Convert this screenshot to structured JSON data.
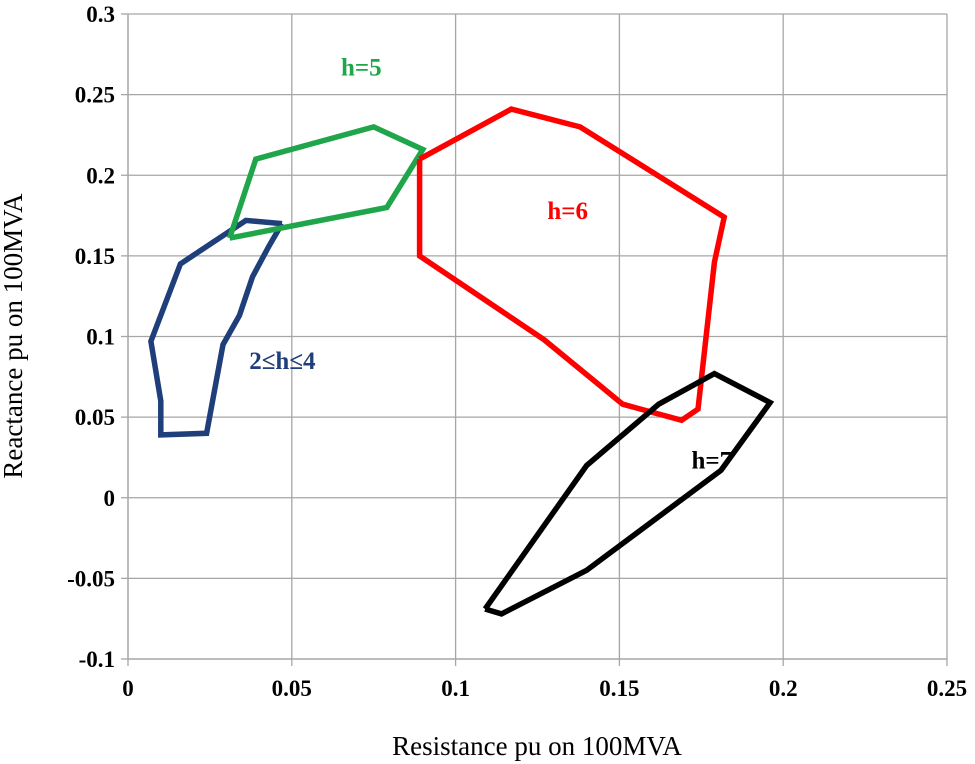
{
  "chart_data": {
    "type": "scatter",
    "title": "",
    "xlabel": "Resistance pu on 100MVA",
    "ylabel": "Reactance pu on 100MVA",
    "xlim": [
      0,
      0.25
    ],
    "ylim": [
      -0.1,
      0.3
    ],
    "xticks": [
      "0",
      "0.05",
      "0.1",
      "0.15",
      "0.2",
      "0.25"
    ],
    "yticks": [
      "-0.1",
      "-0.05",
      "0",
      "0.05",
      "0.1",
      "0.15",
      "0.2",
      "0.25",
      "0.3"
    ],
    "grid": true,
    "series": [
      {
        "name": "2≤h≤4",
        "color": "#1f3f7a",
        "label_at": [
          0.037,
          0.08
        ],
        "points": [
          [
            0.047,
            0.17
          ],
          [
            0.036,
            0.172
          ],
          [
            0.016,
            0.145
          ],
          [
            0.007,
            0.097
          ],
          [
            0.01,
            0.06
          ],
          [
            0.01,
            0.039
          ],
          [
            0.024,
            0.04
          ],
          [
            0.029,
            0.095
          ],
          [
            0.034,
            0.113
          ],
          [
            0.038,
            0.137
          ],
          [
            0.043,
            0.156
          ],
          [
            0.047,
            0.17
          ]
        ]
      },
      {
        "name": "h=5",
        "color": "#1fa64a",
        "label_at": [
          0.065,
          0.262
        ],
        "points": [
          [
            0.031,
            0.161
          ],
          [
            0.039,
            0.21
          ],
          [
            0.075,
            0.23
          ],
          [
            0.09,
            0.216
          ],
          [
            0.079,
            0.18
          ],
          [
            0.031,
            0.161
          ]
        ]
      },
      {
        "name": "h=6",
        "color": "#ff0000",
        "label_at": [
          0.128,
          0.173
        ],
        "points": [
          [
            0.089,
            0.21
          ],
          [
            0.117,
            0.241
          ],
          [
            0.138,
            0.23
          ],
          [
            0.182,
            0.174
          ],
          [
            0.179,
            0.146
          ],
          [
            0.174,
            0.055
          ],
          [
            0.169,
            0.048
          ],
          [
            0.151,
            0.058
          ],
          [
            0.127,
            0.098
          ],
          [
            0.089,
            0.15
          ],
          [
            0.089,
            0.21
          ]
        ]
      },
      {
        "name": "h=7",
        "color": "#000000",
        "label_at": [
          0.172,
          0.018
        ],
        "points": [
          [
            0.109,
            -0.069
          ],
          [
            0.114,
            -0.072
          ],
          [
            0.14,
            -0.045
          ],
          [
            0.181,
            0.017
          ],
          [
            0.196,
            0.059
          ],
          [
            0.179,
            0.077
          ],
          [
            0.162,
            0.058
          ],
          [
            0.14,
            0.02
          ],
          [
            0.109,
            -0.069
          ]
        ]
      }
    ]
  }
}
